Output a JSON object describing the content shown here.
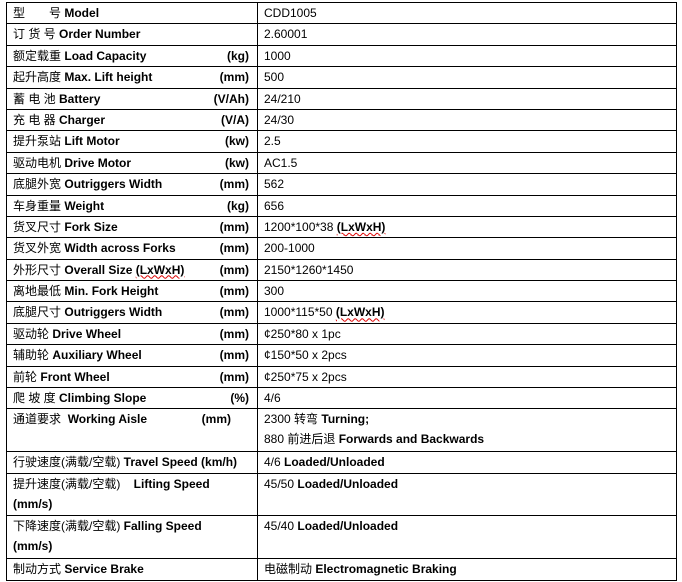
{
  "rows": [
    {
      "zh": "型　　号",
      "en": "Model",
      "unit": "",
      "value": "CDD1005"
    },
    {
      "zh": "订 货 号",
      "en": "Order Number",
      "unit": "",
      "value": "2.60001"
    },
    {
      "zh": "额定载重",
      "en": "Load Capacity",
      "unit": "(kg)",
      "value": "1000"
    },
    {
      "zh": "起升高度",
      "en": "Max. Lift height",
      "unit": "(mm)",
      "value": "500"
    },
    {
      "zh": "蓄 电 池",
      "en": "Battery",
      "unit": "(V/Ah)",
      "value": "24/210"
    },
    {
      "zh": "充 电 器",
      "en": "Charger",
      "unit": "(V/A)",
      "value": "24/30"
    },
    {
      "zh": "提升泵站",
      "en": "Lift Motor",
      "unit": "(kw)",
      "value": "2.5"
    },
    {
      "zh": "驱动电机",
      "en": "Drive Motor",
      "unit": "(kw)",
      "value": "AC1.5"
    },
    {
      "zh": "底腿外宽",
      "en": "Outriggers Width",
      "unit": "(mm)",
      "value": "562"
    },
    {
      "zh": "车身重量",
      "en": "Weight",
      "unit": "(kg)",
      "value": "656"
    },
    {
      "zh": "货叉尺寸",
      "en": "Fork Size",
      "unit": "(mm)",
      "value": "1200*100*38 ",
      "value_b": "(LxWxH)"
    },
    {
      "zh": "货叉外宽",
      "en": "Width across Forks",
      "unit": "(mm)",
      "value": "200-1000"
    },
    {
      "zh": "外形尺寸",
      "en": "Overall Size (LxWxH)",
      "unit": "(mm)",
      "value": "2150*1260*1450"
    },
    {
      "zh": "离地最低",
      "en": "Min. Fork Height",
      "unit": "(mm)",
      "value": "300"
    },
    {
      "zh": "底腿尺寸",
      "en": "Outriggers Width",
      "unit": "(mm)",
      "value": "1000*115*50 ",
      "value_b": "(LxWxH)"
    },
    {
      "zh": "驱动轮",
      "en": "Drive Wheel",
      "unit": "(mm)",
      "value": "¢250*80 x 1pc"
    },
    {
      "zh": "辅助轮",
      "en": "Auxiliary Wheel",
      "unit": "(mm)",
      "value": "¢150*50 x 2pcs"
    },
    {
      "zh": "前轮",
      "en": "Front Wheel",
      "unit": "(mm)",
      "value": "¢250*75 x 2pcs"
    },
    {
      "zh": "爬 坡 度",
      "en": "Climbing Slope",
      "unit": "(%)",
      "value": "4/6"
    }
  ],
  "aisle": {
    "zh": "通道要求",
    "en": "Working Aisle",
    "unit": "(mm)",
    "line1_num": "2300 转弯 ",
    "line1_en": "Turning;",
    "line2_num": "880 前进后退 ",
    "line2_en": "Forwards and Backwards"
  },
  "travel": {
    "zh": "行驶速度(满载/空载)",
    "en": "Travel Speed (km/h)",
    "value": "4/6 ",
    "value_en": "Loaded/Unloaded"
  },
  "lifting": {
    "zh": "提升速度(满载/空载)",
    "en": "Lifting Speed",
    "unit": "(mm/s)",
    "value": "45/50 ",
    "value_en": "Loaded/Unloaded"
  },
  "falling": {
    "zh": "下降速度(满载/空载)",
    "en": "Falling Speed",
    "unit": "(mm/s)",
    "value": "45/40 ",
    "value_en": "Loaded/Unloaded"
  },
  "brake": {
    "zh": "制动方式",
    "en": "Service Brake",
    "value": "电磁制动 ",
    "value_en": "Electromagnetic Braking"
  }
}
